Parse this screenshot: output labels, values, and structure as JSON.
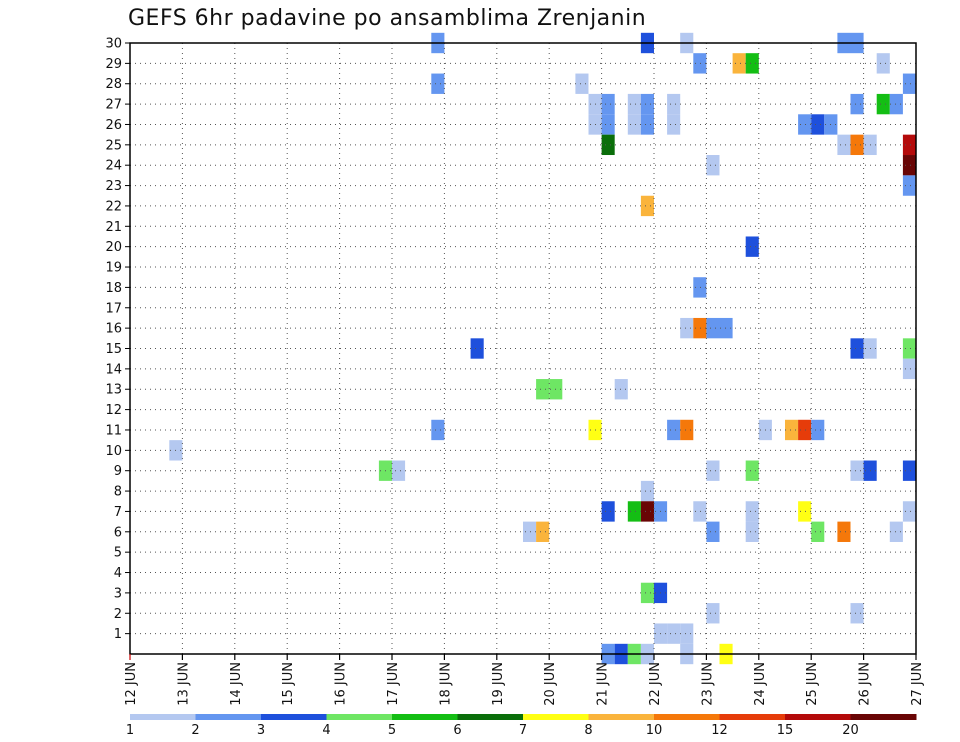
{
  "chart_data": {
    "type": "heatmap",
    "title": "GEFS 6hr padavine po ansamblima Zrenjanin",
    "x_tick_labels": [
      "12 JUN",
      "13 JUN",
      "14 JUN",
      "15 JUN",
      "16 JUN",
      "17 JUN",
      "18 JUN",
      "19 JUN",
      "20 JUN",
      "21 JUN",
      "22 JUN",
      "23 JUN",
      "24 JUN",
      "25 JUN",
      "26 JUN",
      "27 JUN"
    ],
    "x_range_days": [
      12,
      27
    ],
    "time_step_hours": 6,
    "y_tick_labels": [
      "1",
      "2",
      "3",
      "4",
      "5",
      "6",
      "7",
      "8",
      "9",
      "10",
      "11",
      "12",
      "13",
      "14",
      "15",
      "16",
      "17",
      "18",
      "19",
      "20",
      "21",
      "22",
      "23",
      "24",
      "25",
      "26",
      "27",
      "28",
      "29",
      "30"
    ],
    "y_range": [
      0,
      30
    ],
    "grid": true,
    "colorbar": {
      "bins": [
        {
          "lower": 1,
          "color": "#b4c8f0"
        },
        {
          "lower": 2,
          "color": "#6496f0"
        },
        {
          "lower": 3,
          "color": "#1e50dc"
        },
        {
          "lower": 4,
          "color": "#6ee664"
        },
        {
          "lower": 5,
          "color": "#14be14"
        },
        {
          "lower": 6,
          "color": "#0a6e0a"
        },
        {
          "lower": 7,
          "color": "#ffff14"
        },
        {
          "lower": 8,
          "color": "#fab43c"
        },
        {
          "lower": 10,
          "color": "#f5780a"
        },
        {
          "lower": 12,
          "color": "#e63c0a"
        },
        {
          "lower": 15,
          "color": "#b40a0a"
        },
        {
          "lower": 20,
          "color": "#690505"
        }
      ],
      "tick_labels": [
        "1",
        "2",
        "3",
        "4",
        "5",
        "6",
        "7",
        "8",
        "10",
        "12",
        "15",
        "20"
      ]
    },
    "cells": [
      {
        "member": 30,
        "day": 17.75,
        "bin": 2
      },
      {
        "member": 30,
        "day": 21.75,
        "bin": 3
      },
      {
        "member": 30,
        "day": 22.5,
        "bin": 1
      },
      {
        "member": 30,
        "day": 25.5,
        "bin": 2
      },
      {
        "member": 30,
        "day": 25.75,
        "bin": 2
      },
      {
        "member": 29,
        "day": 22.75,
        "bin": 2
      },
      {
        "member": 29,
        "day": 23.5,
        "bin": 8
      },
      {
        "member": 29,
        "day": 23.75,
        "bin": 5
      },
      {
        "member": 29,
        "day": 26.25,
        "bin": 1
      },
      {
        "member": 28,
        "day": 17.75,
        "bin": 2
      },
      {
        "member": 28,
        "day": 20.5,
        "bin": 1
      },
      {
        "member": 28,
        "day": 26.75,
        "bin": 2
      },
      {
        "member": 27,
        "day": 20.75,
        "bin": 1
      },
      {
        "member": 27,
        "day": 21,
        "bin": 2
      },
      {
        "member": 27,
        "day": 21.5,
        "bin": 1
      },
      {
        "member": 27,
        "day": 21.75,
        "bin": 2
      },
      {
        "member": 27,
        "day": 22.25,
        "bin": 1
      },
      {
        "member": 27,
        "day": 25.75,
        "bin": 2
      },
      {
        "member": 27,
        "day": 26.25,
        "bin": 5
      },
      {
        "member": 27,
        "day": 26.5,
        "bin": 2
      },
      {
        "member": 26,
        "day": 20.75,
        "bin": 1
      },
      {
        "member": 26,
        "day": 21,
        "bin": 2
      },
      {
        "member": 26,
        "day": 21.5,
        "bin": 1
      },
      {
        "member": 26,
        "day": 21.75,
        "bin": 2
      },
      {
        "member": 26,
        "day": 22.25,
        "bin": 1
      },
      {
        "member": 26,
        "day": 24.75,
        "bin": 2
      },
      {
        "member": 26,
        "day": 25,
        "bin": 3
      },
      {
        "member": 26,
        "day": 25.25,
        "bin": 2
      },
      {
        "member": 25,
        "day": 21,
        "bin": 6
      },
      {
        "member": 25,
        "day": 25.5,
        "bin": 1
      },
      {
        "member": 25,
        "day": 25.75,
        "bin": 10
      },
      {
        "member": 25,
        "day": 26,
        "bin": 1
      },
      {
        "member": 25,
        "day": 26.75,
        "bin": 15
      },
      {
        "member": 24,
        "day": 23,
        "bin": 1
      },
      {
        "member": 24,
        "day": 26.75,
        "bin": 20
      },
      {
        "member": 23,
        "day": 26.75,
        "bin": 2
      },
      {
        "member": 22,
        "day": 21.75,
        "bin": 8
      },
      {
        "member": 20,
        "day": 23.75,
        "bin": 3
      },
      {
        "member": 18,
        "day": 22.75,
        "bin": 2
      },
      {
        "member": 16,
        "day": 22.5,
        "bin": 1
      },
      {
        "member": 16,
        "day": 22.75,
        "bin": 10
      },
      {
        "member": 16,
        "day": 23,
        "bin": 2
      },
      {
        "member": 16,
        "day": 23.25,
        "bin": 2
      },
      {
        "member": 15,
        "day": 18.5,
        "bin": 3
      },
      {
        "member": 15,
        "day": 25.75,
        "bin": 3
      },
      {
        "member": 15,
        "day": 26,
        "bin": 1
      },
      {
        "member": 15,
        "day": 26.75,
        "bin": 4
      },
      {
        "member": 14,
        "day": 26.75,
        "bin": 1
      },
      {
        "member": 13,
        "day": 19.75,
        "bin": 4
      },
      {
        "member": 13,
        "day": 20,
        "bin": 4
      },
      {
        "member": 13,
        "day": 21.25,
        "bin": 1
      },
      {
        "member": 11,
        "day": 17.75,
        "bin": 2
      },
      {
        "member": 11,
        "day": 20.75,
        "bin": 7
      },
      {
        "member": 11,
        "day": 22.25,
        "bin": 2
      },
      {
        "member": 11,
        "day": 22.5,
        "bin": 10
      },
      {
        "member": 11,
        "day": 24,
        "bin": 1
      },
      {
        "member": 11,
        "day": 24.5,
        "bin": 8
      },
      {
        "member": 11,
        "day": 24.75,
        "bin": 12
      },
      {
        "member": 11,
        "day": 25,
        "bin": 2
      },
      {
        "member": 10,
        "day": 12.75,
        "bin": 1
      },
      {
        "member": 9,
        "day": 16.75,
        "bin": 4
      },
      {
        "member": 9,
        "day": 17,
        "bin": 1
      },
      {
        "member": 9,
        "day": 23,
        "bin": 1
      },
      {
        "member": 9,
        "day": 23.75,
        "bin": 4
      },
      {
        "member": 9,
        "day": 25.75,
        "bin": 1
      },
      {
        "member": 9,
        "day": 26,
        "bin": 3
      },
      {
        "member": 9,
        "day": 26.75,
        "bin": 3
      },
      {
        "member": 8,
        "day": 21.75,
        "bin": 1
      },
      {
        "member": 7,
        "day": 21,
        "bin": 3
      },
      {
        "member": 7,
        "day": 21.5,
        "bin": 5
      },
      {
        "member": 7,
        "day": 21.75,
        "bin": 20
      },
      {
        "member": 7,
        "day": 22,
        "bin": 2
      },
      {
        "member": 7,
        "day": 22.75,
        "bin": 1
      },
      {
        "member": 7,
        "day": 23.75,
        "bin": 1
      },
      {
        "member": 7,
        "day": 24.75,
        "bin": 7
      },
      {
        "member": 7,
        "day": 26.75,
        "bin": 1
      },
      {
        "member": 6,
        "day": 19.5,
        "bin": 1
      },
      {
        "member": 6,
        "day": 19.75,
        "bin": 8
      },
      {
        "member": 6,
        "day": 23,
        "bin": 2
      },
      {
        "member": 6,
        "day": 23.75,
        "bin": 1
      },
      {
        "member": 6,
        "day": 25,
        "bin": 4
      },
      {
        "member": 6,
        "day": 25.5,
        "bin": 10
      },
      {
        "member": 6,
        "day": 26.5,
        "bin": 1
      },
      {
        "member": 3,
        "day": 21.75,
        "bin": 4
      },
      {
        "member": 3,
        "day": 22,
        "bin": 3
      },
      {
        "member": 2,
        "day": 23,
        "bin": 1
      },
      {
        "member": 2,
        "day": 25.75,
        "bin": 1
      },
      {
        "member": 1,
        "day": 22,
        "bin": 1
      },
      {
        "member": 1,
        "day": 22.25,
        "bin": 1
      },
      {
        "member": 1,
        "day": 22.5,
        "bin": 1
      },
      {
        "member": 0,
        "day": 21,
        "bin": 2
      },
      {
        "member": 0,
        "day": 21.25,
        "bin": 3
      },
      {
        "member": 0,
        "day": 21.5,
        "bin": 4
      },
      {
        "member": 0,
        "day": 21.75,
        "bin": 1
      },
      {
        "member": 0,
        "day": 22.5,
        "bin": 1
      },
      {
        "member": 0,
        "day": 23.25,
        "bin": 7
      }
    ]
  }
}
